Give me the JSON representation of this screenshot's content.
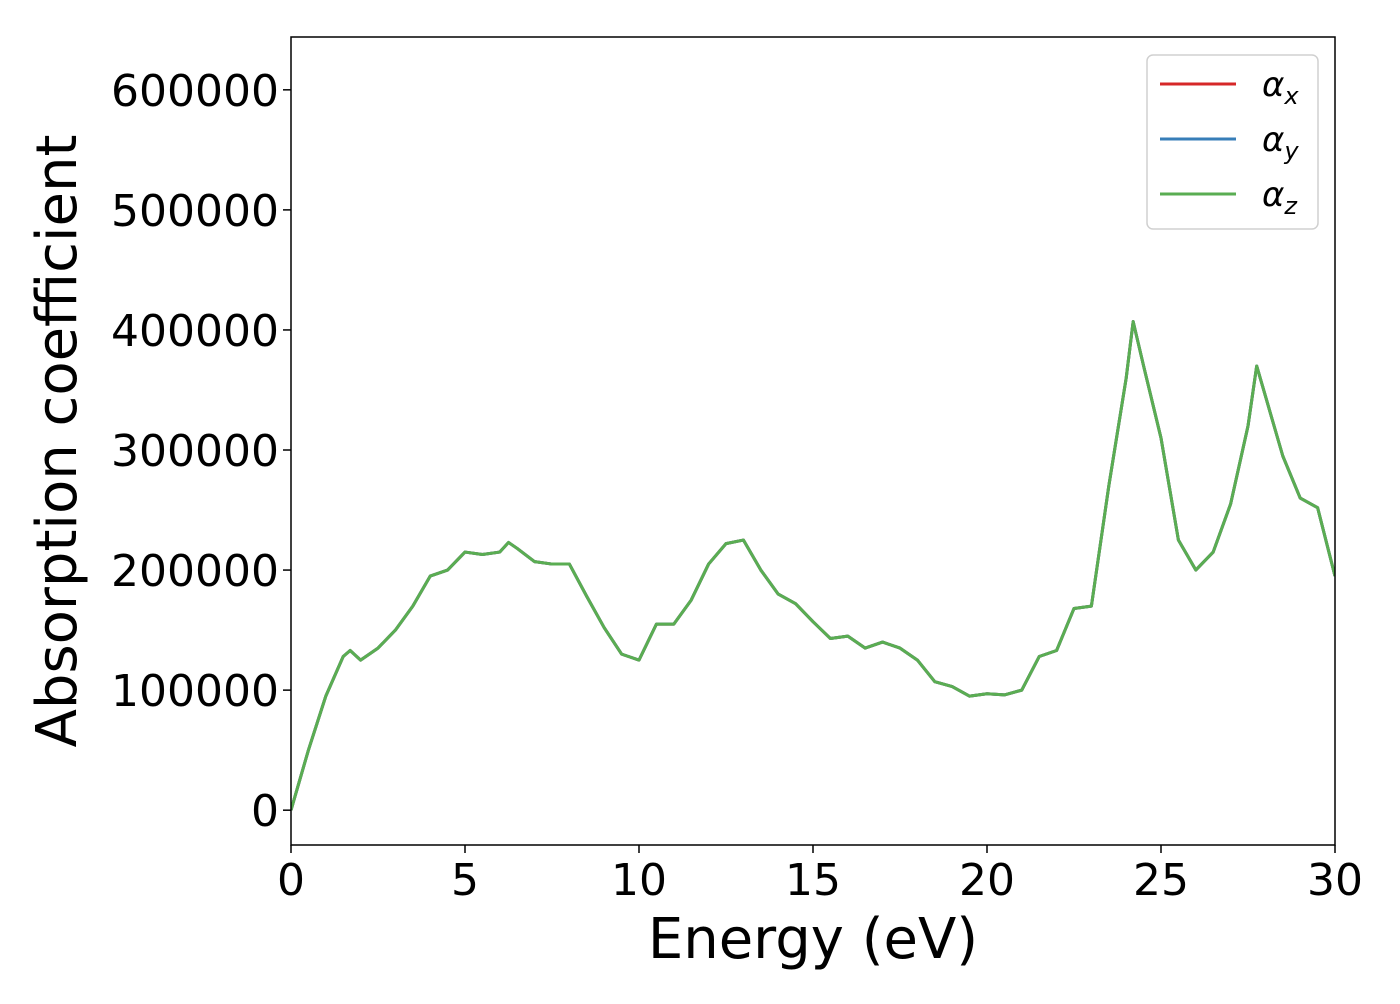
{
  "chart_data": {
    "type": "line",
    "xlabel": "Energy (eV)",
    "ylabel": "Absorption coefficient",
    "x": [
      0,
      0.5,
      1,
      1.5,
      1.7,
      2,
      2.5,
      3,
      3.5,
      4,
      4.5,
      5,
      5.5,
      6,
      6.25,
      6.5,
      7,
      7.5,
      8,
      8.5,
      9,
      9.5,
      10,
      10.5,
      11,
      11.5,
      12,
      12.5,
      13,
      13.5,
      14,
      14.5,
      15,
      15.5,
      16,
      16.5,
      17,
      17.5,
      18,
      18.5,
      19,
      19.5,
      20,
      20.5,
      21,
      21.5,
      22,
      22.5,
      23,
      23.5,
      24,
      24.2,
      24.5,
      25,
      25.5,
      26,
      26.5,
      27,
      27.5,
      27.75,
      28,
      28.5,
      29,
      29.5,
      30
    ],
    "series": [
      {
        "name": "αx",
        "color": "#d62728",
        "values": [
          0,
          50000,
          95000,
          128000,
          133000,
          125000,
          135000,
          150000,
          170000,
          195000,
          200000,
          215000,
          213000,
          215000,
          223000,
          218000,
          207000,
          205000,
          205000,
          178000,
          152000,
          130000,
          125000,
          155000,
          155000,
          175000,
          205000,
          222000,
          225000,
          200000,
          180000,
          172000,
          157000,
          143000,
          145000,
          135000,
          140000,
          135000,
          125000,
          107000,
          103000,
          95000,
          97000,
          96000,
          100000,
          128000,
          133000,
          168000,
          170000,
          270000,
          360000,
          407000,
          370000,
          310000,
          225000,
          200000,
          215000,
          255000,
          320000,
          370000,
          345000,
          295000,
          260000,
          252000,
          195000
        ]
      },
      {
        "name": "αy",
        "color": "#377eb8",
        "values": [
          0,
          50000,
          95000,
          128000,
          133000,
          125000,
          135000,
          150000,
          170000,
          195000,
          200000,
          215000,
          213000,
          215000,
          223000,
          218000,
          207000,
          205000,
          205000,
          178000,
          152000,
          130000,
          125000,
          155000,
          155000,
          175000,
          205000,
          222000,
          225000,
          200000,
          180000,
          172000,
          157000,
          143000,
          145000,
          135000,
          140000,
          135000,
          125000,
          107000,
          103000,
          95000,
          97000,
          96000,
          100000,
          128000,
          133000,
          168000,
          170000,
          270000,
          360000,
          407000,
          370000,
          310000,
          225000,
          200000,
          215000,
          255000,
          320000,
          370000,
          345000,
          295000,
          260000,
          252000,
          195000
        ]
      },
      {
        "name": "αz",
        "color": "#5aad52",
        "values": [
          0,
          50000,
          95000,
          128000,
          133000,
          125000,
          135000,
          150000,
          170000,
          195000,
          200000,
          215000,
          213000,
          215000,
          223000,
          218000,
          207000,
          205000,
          205000,
          178000,
          152000,
          130000,
          125000,
          155000,
          155000,
          175000,
          205000,
          222000,
          225000,
          200000,
          180000,
          172000,
          157000,
          143000,
          145000,
          135000,
          140000,
          135000,
          125000,
          107000,
          103000,
          95000,
          97000,
          96000,
          100000,
          128000,
          133000,
          168000,
          170000,
          270000,
          360000,
          407000,
          370000,
          310000,
          225000,
          200000,
          215000,
          255000,
          320000,
          370000,
          345000,
          295000,
          260000,
          252000,
          195000
        ]
      }
    ],
    "xlim": [
      0,
      30
    ],
    "xticks": [
      0,
      5,
      10,
      15,
      20,
      25,
      30
    ],
    "ylim": [
      -29000,
      644000
    ],
    "yticks": [
      0,
      100000,
      200000,
      300000,
      400000,
      500000,
      600000
    ],
    "grid": false,
    "legend": "upper right"
  }
}
